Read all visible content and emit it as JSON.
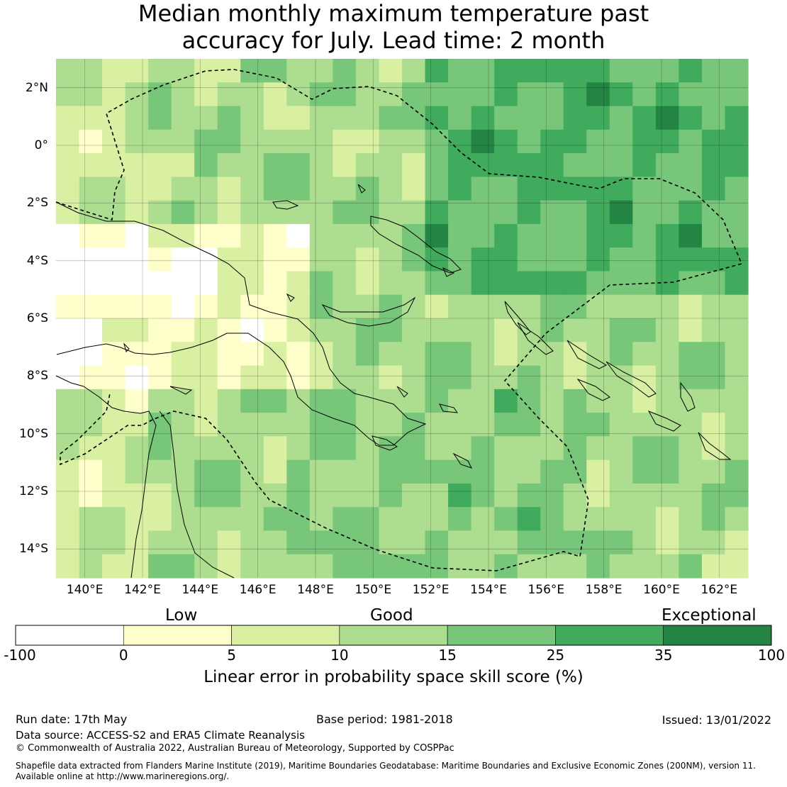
{
  "title": {
    "line1": "Median monthly maximum temperature past",
    "line2": "accuracy for July. Lead time: 2 month"
  },
  "map": {
    "lon_range": [
      139,
      163
    ],
    "lat_range": [
      -15,
      3
    ],
    "lat_labels": [
      "2°N",
      "0°",
      "2°S",
      "4°S",
      "6°S",
      "8°S",
      "10°S",
      "12°S",
      "14°S"
    ],
    "lon_labels": [
      "140°E",
      "142°E",
      "144°E",
      "146°E",
      "148°E",
      "150°E",
      "152°E",
      "154°E",
      "156°E",
      "158°E",
      "160°E",
      "162°E"
    ]
  },
  "legend": {
    "category_low": "Low",
    "category_good": "Good",
    "category_exceptional": "Exceptional",
    "ticks": [
      "-100",
      "0",
      "5",
      "10",
      "15",
      "25",
      "35",
      "100"
    ],
    "colors": [
      "#ffffff",
      "#ffffcc",
      "#d9f0a3",
      "#addd8e",
      "#78c679",
      "#41ab5d",
      "#238443"
    ],
    "title": "Linear error in probability space skill score (%)"
  },
  "footer": {
    "run_date": "Run date: 17th May",
    "base_period": "Base period: 1981-2018",
    "issued": "Issued: 13/01/2022",
    "data_source": "Data source: ACCESS-S2 and ERA5 Climate Reanalysis",
    "copyright": "© Commonwealth of Australia 2022, Australian Bureau of Meteorology, Supported by COSPPac",
    "shapefile_line1": "Shapefile data extracted from Flanders Marine Institute (2019), Maritime Boundaries Geodatabase: Maritime Boundaries and Exclusive Economic Zones (200NM), version 11.",
    "shapefile_line2": "Available online at http://www.marineregions.org/."
  }
}
